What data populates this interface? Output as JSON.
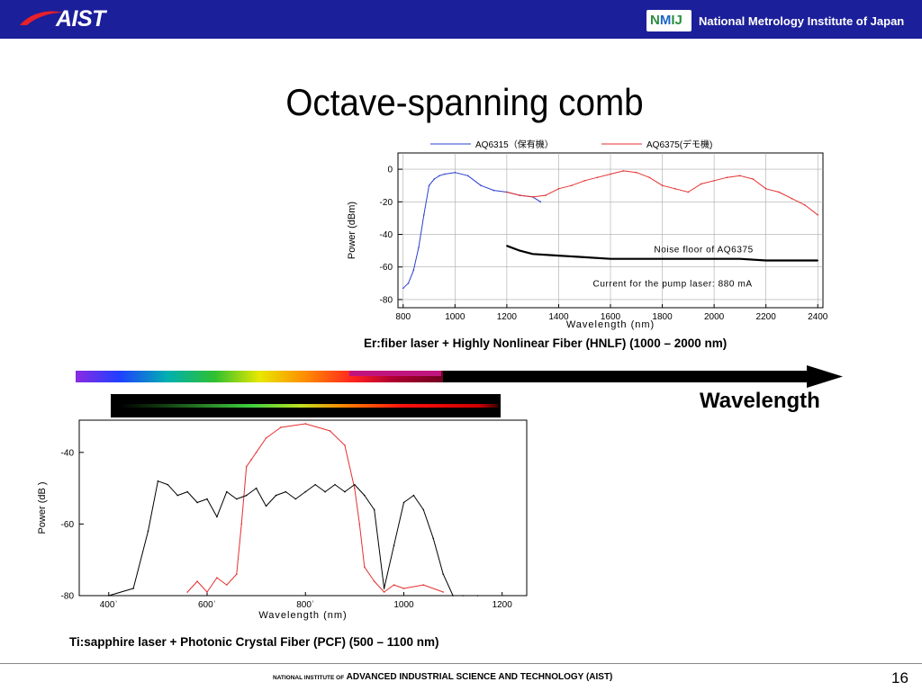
{
  "header": {
    "logo_text": "AIST",
    "nmij_text": "NMIJ",
    "institute": "National Metrology Institute of Japan"
  },
  "slide": {
    "title": "Octave-spanning comb",
    "page_number": "16"
  },
  "spectrum_bar": {
    "label": "Wavelength"
  },
  "footer": {
    "prefix": "NATIONAL INSTITUTE OF",
    "name": "ADVANCED INDUSTRIAL SCIENCE AND TECHNOLOGY (AIST)"
  },
  "chart_data": [
    {
      "type": "line",
      "caption": "Er:fiber laser + Highly Nonlinear Fiber (HNLF) (1000 – 2000 nm)",
      "xlabel": "Wavelength (nm)",
      "ylabel": "Power (dBm)",
      "xlim": [
        780,
        2420
      ],
      "ylim": [
        -85,
        10
      ],
      "xticks": [
        800,
        1000,
        1200,
        1400,
        1600,
        1800,
        2000,
        2200,
        2400
      ],
      "yticks": [
        0,
        -20,
        -40,
        -60,
        -80
      ],
      "grid": true,
      "legend_position": "top",
      "annotations": [
        "Noise floor of AQ6375",
        "Current for the pump laser: 880 mA"
      ],
      "series": [
        {
          "name": "AQ6315（保有機）",
          "color": "#2b3fd0",
          "x": [
            800,
            820,
            840,
            860,
            880,
            900,
            920,
            940,
            960,
            1000,
            1050,
            1100,
            1150,
            1200,
            1250,
            1300,
            1330
          ],
          "y": [
            -73,
            -70,
            -62,
            -48,
            -28,
            -10,
            -6,
            -4,
            -3,
            -2,
            -4,
            -10,
            -13,
            -14,
            -16,
            -17,
            -20
          ]
        },
        {
          "name": "AQ6375(デモ機)",
          "color": "#e53030",
          "x": [
            1200,
            1250,
            1300,
            1350,
            1400,
            1450,
            1500,
            1550,
            1600,
            1650,
            1700,
            1750,
            1800,
            1850,
            1900,
            1950,
            2000,
            2050,
            2100,
            2150,
            2200,
            2250,
            2300,
            2350,
            2400
          ],
          "y": [
            -14,
            -16,
            -17,
            -16,
            -12,
            -10,
            -7,
            -5,
            -3,
            -1,
            -2,
            -5,
            -10,
            -12,
            -14,
            -9,
            -7,
            -5,
            -4,
            -6,
            -12,
            -14,
            -18,
            -22,
            -28
          ]
        },
        {
          "name": "",
          "color": "#000000",
          "x": [
            1200,
            1250,
            1300,
            1400,
            1500,
            1600,
            1700,
            1800,
            1900,
            2000,
            2100,
            2200,
            2300,
            2400
          ],
          "y": [
            -47,
            -50,
            -52,
            -53,
            -54,
            -55,
            -55,
            -55,
            -55,
            -55,
            -55,
            -56,
            -56,
            -56
          ]
        }
      ]
    },
    {
      "type": "line",
      "caption": "Ti:sapphire laser + Photonic Crystal Fiber (PCF) (500 – 1100 nm)",
      "xlabel": "Wavelength (nm)",
      "ylabel": "Power (dB   )",
      "xlim": [
        340,
        1250
      ],
      "ylim": [
        -80,
        -31
      ],
      "xticks": [
        400,
        600,
        800,
        1000,
        1200
      ],
      "xtick_labels": [
        "400ʾ",
        "600ʾ",
        "800ʾ",
        "1000",
        "1200"
      ],
      "yticks": [
        -40,
        -60,
        -80
      ],
      "grid": false,
      "series": [
        {
          "name": "",
          "color": "#e53030",
          "x": [
            560,
            580,
            600,
            620,
            640,
            660,
            670,
            680,
            690,
            700,
            720,
            750,
            800,
            850,
            880,
            900,
            910,
            920,
            940,
            960,
            980,
            1000,
            1040,
            1080
          ],
          "y": [
            -79,
            -76,
            -79,
            -75,
            -77,
            -74,
            -60,
            -44,
            -42,
            -40,
            -36,
            -33,
            -32,
            -34,
            -38,
            -50,
            -60,
            -72,
            -76,
            -79,
            -77,
            -78,
            -77,
            -79
          ]
        },
        {
          "name": "",
          "color": "#000000",
          "x": [
            400,
            450,
            480,
            500,
            520,
            540,
            560,
            580,
            600,
            620,
            640,
            660,
            680,
            700,
            720,
            740,
            760,
            780,
            800,
            820,
            840,
            860,
            880,
            900,
            920,
            940,
            960,
            980,
            1000,
            1020,
            1040,
            1060,
            1080,
            1100,
            1120,
            1150
          ],
          "y": [
            -80,
            -78,
            -62,
            -48,
            -49,
            -52,
            -51,
            -54,
            -53,
            -58,
            -51,
            -53,
            -52,
            -50,
            -55,
            -52,
            -51,
            -53,
            -51,
            -49,
            -51,
            -49,
            -51,
            -49,
            -52,
            -56,
            -78,
            -66,
            -54,
            -52,
            -56,
            -64,
            -74,
            -80,
            -80,
            -80
          ]
        }
      ]
    }
  ]
}
